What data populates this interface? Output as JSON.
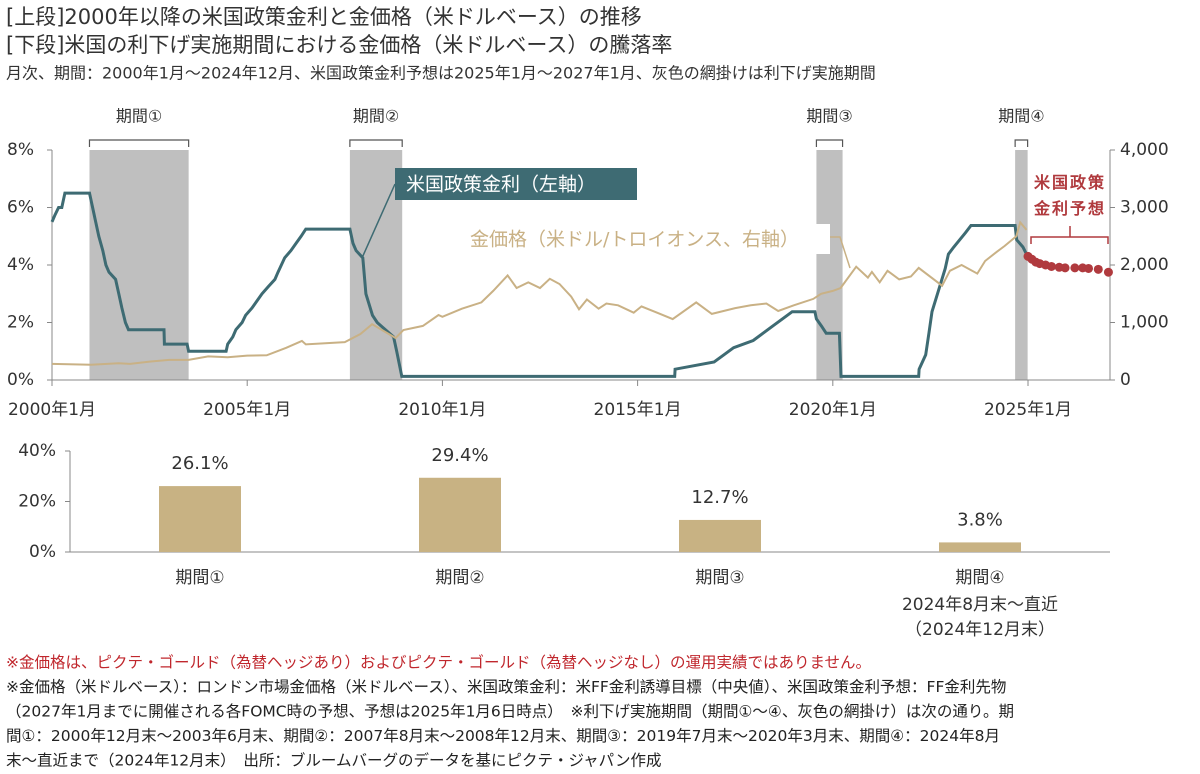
{
  "header": {
    "title": [
      "[上段]2000年以降の米国政策金利と金価格（米ドルベース）の推移",
      "[下段]米国の利下げ実施期間における金価格（米ドルベース）の騰落率"
    ],
    "subtitle": "月次、期間：2000年1月～2024年12月、米国政策金利予想は2025年1月～2027年1月、灰色の網掛けは利下げ実施期間"
  },
  "chart_data": [
    {
      "type": "line",
      "xlim": [
        2000,
        2027.1
      ],
      "xticks": [
        {
          "value": 2000,
          "label": "2000年1月"
        },
        {
          "value": 2005,
          "label": "2005年1月"
        },
        {
          "value": 2010,
          "label": "2010年1月"
        },
        {
          "value": 2015,
          "label": "2015年1月"
        },
        {
          "value": 2020,
          "label": "2020年1月"
        },
        {
          "value": 2025,
          "label": "2025年1月"
        }
      ],
      "ylim": [
        0,
        8
      ],
      "yticks": [
        {
          "value": 0,
          "label": "0%"
        },
        {
          "value": 2,
          "label": "2%"
        },
        {
          "value": 4,
          "label": "4%"
        },
        {
          "value": 6,
          "label": "6%"
        },
        {
          "value": 8,
          "label": "8%"
        }
      ],
      "y2lim": [
        0,
        4000
      ],
      "y2ticks": [
        0,
        {
          "value": 1000,
          "label": "1,000"
        },
        {
          "value": 2000,
          "label": "2,000"
        },
        {
          "value": 3000,
          "label": "3,000"
        },
        {
          "value": 4000,
          "label": "4,000"
        }
      ],
      "periods": [
        {
          "label": "期間①",
          "start": 2000.96,
          "end": 2003.5
        },
        {
          "label": "期間②",
          "start": 2007.63,
          "end": 2008.97
        },
        {
          "label": "期間③",
          "start": 2019.58,
          "end": 2020.25
        },
        {
          "label": "期間④",
          "start": 2024.67,
          "end": 2024.99
        }
      ],
      "period_color": "#bfbfbf",
      "series": [
        {
          "name": "米国政策金利（左軸）",
          "color": "#3e6b73",
          "x": [
            2000.0,
            2000.08,
            2000.17,
            2000.25,
            2000.33,
            2000.96,
            2001.04,
            2001.12,
            2001.2,
            2001.3,
            2001.38,
            2001.46,
            2001.63,
            2001.71,
            2001.79,
            2001.88,
            2001.96,
            2002.87,
            2002.88,
            2003.46,
            2003.5,
            2004.46,
            2004.5,
            2004.63,
            2004.71,
            2004.87,
            2004.96,
            2005.12,
            2005.25,
            2005.38,
            2005.54,
            2005.71,
            2005.79,
            2005.96,
            2006.12,
            2006.25,
            2006.38,
            2006.5,
            2007.63,
            2007.71,
            2007.79,
            2007.96,
            2008.04,
            2008.21,
            2008.33,
            2008.75,
            2008.83,
            2008.96,
            2015.95,
            2015.96,
            2016.96,
            2017.21,
            2017.46,
            2017.96,
            2018.21,
            2018.46,
            2018.71,
            2018.96,
            2019.54,
            2019.58,
            2019.71,
            2019.83,
            2020.17,
            2020.21,
            2022.2,
            2022.21,
            2022.38,
            2022.46,
            2022.54,
            2022.71,
            2022.88,
            2022.96,
            2023.1,
            2023.25,
            2023.4,
            2023.54,
            2024.67,
            2024.71,
            2024.87,
            2024.96
          ],
          "values": [
            5.5,
            5.75,
            6.0,
            6.0,
            6.5,
            6.5,
            6.0,
            5.5,
            5.0,
            4.5,
            4.0,
            3.75,
            3.5,
            3.0,
            2.5,
            2.0,
            1.75,
            1.75,
            1.25,
            1.25,
            1.0,
            1.0,
            1.25,
            1.5,
            1.75,
            2.0,
            2.25,
            2.5,
            2.75,
            3.0,
            3.25,
            3.5,
            3.75,
            4.25,
            4.5,
            4.75,
            5.0,
            5.25,
            5.25,
            4.75,
            4.5,
            4.25,
            3.0,
            2.25,
            2.0,
            1.5,
            1.0,
            0.125,
            0.125,
            0.375,
            0.625,
            0.875,
            1.125,
            1.375,
            1.625,
            1.875,
            2.125,
            2.375,
            2.375,
            2.125,
            1.875,
            1.625,
            1.625,
            0.125,
            0.125,
            0.375,
            0.875,
            1.625,
            2.375,
            3.125,
            3.875,
            4.375,
            4.625,
            4.875,
            5.125,
            5.375,
            5.375,
            4.875,
            4.625,
            4.375
          ]
        },
        {
          "name": "金価格（米ドル/トロイオンス、右軸）",
          "color": "#c9b185",
          "axis": "y2",
          "x": [
            2000.0,
            2001.0,
            2001.7,
            2002.0,
            2002.5,
            2003.0,
            2003.5,
            2004.0,
            2004.5,
            2005.0,
            2005.5,
            2006.0,
            2006.4,
            2006.5,
            2007.0,
            2007.5,
            2007.9,
            2008.2,
            2008.8,
            2009.0,
            2009.5,
            2009.9,
            2010.0,
            2010.5,
            2011.0,
            2011.3,
            2011.67,
            2011.9,
            2012.2,
            2012.5,
            2012.75,
            2013.0,
            2013.3,
            2013.5,
            2013.7,
            2014.0,
            2014.2,
            2014.5,
            2014.9,
            2015.1,
            2015.5,
            2015.9,
            2016.5,
            2016.9,
            2017.5,
            2017.9,
            2018.3,
            2018.6,
            2019.0,
            2019.5,
            2019.7,
            2020.0,
            2020.2,
            2020.6,
            2020.9,
            2021.0,
            2021.2,
            2021.4,
            2021.7,
            2022.0,
            2022.2,
            2022.8,
            2023.0,
            2023.3,
            2023.7,
            2023.9,
            2024.2,
            2024.4,
            2024.7,
            2024.8,
            2024.96
          ],
          "values": [
            280,
            265,
            290,
            280,
            320,
            350,
            350,
            410,
            395,
            425,
            430,
            560,
            680,
            620,
            640,
            660,
            800,
            970,
            730,
            870,
            940,
            1130,
            1100,
            1240,
            1350,
            1550,
            1820,
            1600,
            1700,
            1600,
            1760,
            1670,
            1450,
            1230,
            1400,
            1240,
            1330,
            1300,
            1170,
            1280,
            1170,
            1060,
            1350,
            1150,
            1250,
            1300,
            1330,
            1200,
            1300,
            1410,
            1500,
            1550,
            1600,
            1970,
            1780,
            1880,
            1700,
            1900,
            1750,
            1800,
            1950,
            1640,
            1900,
            2000,
            1850,
            2070,
            2230,
            2330,
            2500,
            2740,
            2610
          ]
        },
        {
          "name": "米国政策金利予想",
          "color": "#b03a3e",
          "style": "dots",
          "x": [
            2025.0,
            2025.1,
            2025.2,
            2025.3,
            2025.45,
            2025.6,
            2025.8,
            2025.95,
            2026.2,
            2026.4,
            2026.55,
            2026.8,
            2027.06
          ],
          "values": [
            4.3,
            4.2,
            4.1,
            4.05,
            4.0,
            3.95,
            3.92,
            3.9,
            3.9,
            3.9,
            3.88,
            3.85,
            3.75
          ]
        }
      ]
    },
    {
      "type": "bar",
      "categories": [
        "期間①",
        "期間②",
        "期間③",
        "期間④"
      ],
      "category_notes": [
        "2024年8月末～直近",
        "（2024年12月末）"
      ],
      "values": [
        26.1,
        29.4,
        12.7,
        3.8
      ],
      "value_labels": [
        "26.1%",
        "29.4%",
        "12.7%",
        "3.8%"
      ],
      "color": "#c8b283",
      "ylim": [
        0,
        40
      ],
      "yticks": [
        {
          "value": 0,
          "label": "0%"
        },
        {
          "value": 20,
          "label": "20%"
        },
        {
          "value": 40,
          "label": "40%"
        }
      ]
    }
  ],
  "notes": [
    {
      "text": "※金価格は、ピクテ・ゴールド（為替ヘッジあり）およびピクテ・ゴールド（為替ヘッジなし）の運用実績ではありません。",
      "color": "#c0272d"
    },
    {
      "text": "※金価格（米ドルベース）：ロンドン市場金価格（米ドルベース）、米国政策金利：米FF金利誘導目標（中央値）、米国政策金利予想：FF金利先物",
      "color": "#222222"
    },
    {
      "text": "（2027年1月までに開催される各FOMC時の予想、予想は2025年1月6日時点）　※利下げ実施期間（期間①～④、灰色の網掛け）は次の通り。期",
      "color": "#222222"
    },
    {
      "text": "間①：2000年12月末～2003年6月末、期間②：2007年8月末～2008年12月末、期間③：2019年7月末～2020年3月末、期間④：2024年8月",
      "color": "#222222"
    },
    {
      "text": "末～直近まで（2024年12月末）　出所：ブルームバーグのデータを基にピクテ・ジャパン作成",
      "color": "#222222"
    }
  ]
}
